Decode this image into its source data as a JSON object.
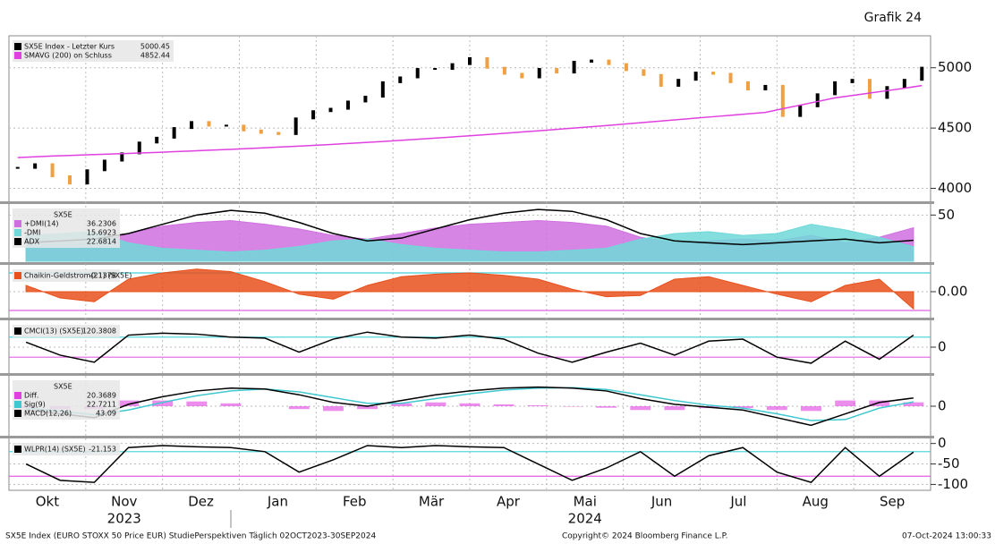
{
  "header": {
    "title": "Grafik 24"
  },
  "x_axis": {
    "months": [
      "Okt",
      "Nov",
      "Dez",
      "Jan",
      "Feb",
      "Mär",
      "Apr",
      "Mai",
      "Jun",
      "Jul",
      "Aug",
      "Sep"
    ],
    "years": [
      "2023",
      "2024"
    ]
  },
  "footer": {
    "left": "SX5E Index (EURO STOXX 50 Price EUR) StudiePerspektiven  Täglich 02OCT2023-30SEP2024",
    "center": "Copyright© 2024 Bloomberg Finance L.P.",
    "right": "07-Oct-2024 13:00:33"
  },
  "chart_data": [
    {
      "type": "line",
      "ylim": [
        3900,
        5250
      ],
      "yticks": [
        4000,
        4500,
        5000
      ],
      "grid": true,
      "series": [
        {
          "name": "SX5E Index - Letzter Kurs",
          "style": "bars",
          "color": "#000000",
          "down_color": "#f0a040",
          "last_label": "5000.45",
          "values": [
            4170,
            4200,
            4100,
            4040,
            4150,
            4230,
            4290,
            4380,
            4420,
            4500,
            4550,
            4520,
            4520,
            4480,
            4460,
            4450,
            4580,
            4640,
            4660,
            4720,
            4760,
            4880,
            4920,
            4990,
            4990,
            5030,
            5080,
            5000,
            4950,
            4920,
            4990,
            4960,
            5050,
            5060,
            5030,
            4980,
            4940,
            4850,
            4900,
            4960,
            4950,
            4880,
            4820,
            4850,
            4600,
            4680,
            4780,
            4880,
            4900,
            4750,
            4840,
            4900,
            5000.45
          ]
        },
        {
          "name": "SMAVG (200)  on Schluss",
          "style": "line",
          "color": "#e040e0",
          "last_label": "4852.44",
          "values": [
            4255,
            4262,
            4268,
            4273,
            4278,
            4283,
            4288,
            4293,
            4298,
            4304,
            4310,
            4316,
            4322,
            4328,
            4335,
            4342,
            4349,
            4356,
            4364,
            4372,
            4380,
            4389,
            4398,
            4407,
            4416,
            4426,
            4436,
            4446,
            4456,
            4467,
            4478,
            4489,
            4500,
            4511,
            4522,
            4534,
            4546,
            4558,
            4570,
            4582,
            4594,
            4606,
            4618,
            4630,
            4660,
            4690,
            4720,
            4750,
            4770,
            4790,
            4810,
            4830,
            4852.44
          ]
        }
      ]
    },
    {
      "type": "line",
      "title": "SX5E",
      "ylim": [
        0,
        60
      ],
      "yticks": [
        50
      ],
      "grid": true,
      "series": [
        {
          "name": "+DMI(14)",
          "style": "area",
          "color": "#d070e0",
          "last_label": "36.2306",
          "values": [
            25,
            22,
            18,
            30,
            38,
            42,
            44,
            40,
            35,
            28,
            24,
            30,
            36,
            40,
            42,
            44,
            42,
            38,
            26,
            20,
            22,
            24,
            22,
            28,
            20,
            26,
            36.2306
          ]
        },
        {
          "name": "-DMI",
          "style": "area",
          "color": "#70d8d8",
          "last_label": "15.6923",
          "values": [
            28,
            30,
            32,
            20,
            14,
            12,
            10,
            12,
            16,
            22,
            24,
            18,
            14,
            12,
            10,
            10,
            12,
            14,
            24,
            30,
            32,
            28,
            30,
            40,
            34,
            26,
            15.6923
          ]
        },
        {
          "name": "ADX",
          "style": "line",
          "color": "#000000",
          "last_label": "22.6814",
          "values": [
            20,
            22,
            24,
            30,
            40,
            50,
            55,
            52,
            42,
            30,
            22,
            25,
            35,
            45,
            52,
            56,
            54,
            45,
            30,
            22,
            20,
            18,
            20,
            22,
            24,
            20,
            22.6814
          ]
        }
      ]
    },
    {
      "type": "line",
      "ylim": [
        -0.2,
        0.2
      ],
      "yticks": [
        {
          "value": 0,
          "label": "0.00"
        }
      ],
      "grid": true,
      "ref_lines": [
        0.15,
        -0.15
      ],
      "series": [
        {
          "name": "Chaikin-Geldstrom(21) (SX5E)",
          "style": "area",
          "color": "#e8501c",
          "last_label": "-0.1378",
          "values": [
            0.05,
            -0.05,
            -0.08,
            0.1,
            0.15,
            0.18,
            0.16,
            0.08,
            -0.02,
            -0.06,
            0.05,
            0.12,
            0.14,
            0.15,
            0.13,
            0.1,
            0.02,
            -0.04,
            -0.03,
            0.1,
            0.12,
            0.05,
            -0.02,
            -0.08,
            0.05,
            0.1,
            -0.1378
          ]
        }
      ]
    },
    {
      "type": "line",
      "ylim": [
        -250,
        250
      ],
      "yticks": [
        0
      ],
      "grid": true,
      "ref_lines": [
        100,
        -100
      ],
      "series": [
        {
          "name": "CMCI(13) (SX5E)",
          "style": "line",
          "color": "#000000",
          "last_label": "120.3808",
          "values": [
            50,
            -80,
            -150,
            120,
            140,
            130,
            100,
            90,
            -50,
            80,
            150,
            100,
            90,
            120,
            80,
            -60,
            -150,
            -50,
            40,
            -80,
            60,
            80,
            -100,
            -160,
            60,
            -120,
            120.3808
          ]
        }
      ]
    },
    {
      "type": "line",
      "title": "SX5E",
      "ylim": [
        -150,
        150
      ],
      "yticks": [
        0
      ],
      "grid": true,
      "series": [
        {
          "name": "Diff.",
          "style": "histogram",
          "color": "#e040e0",
          "last_label": "20.3689",
          "values": [
            -10,
            -15,
            -15,
            30,
            30,
            25,
            15,
            0,
            -15,
            -25,
            -15,
            15,
            20,
            15,
            10,
            5,
            -2,
            -8,
            -20,
            -20,
            -10,
            -10,
            -20,
            -25,
            30,
            30,
            20.3689
          ]
        },
        {
          "name": "Sig(9)",
          "style": "line",
          "color": "#40c8d0",
          "last_label": "22.7211",
          "values": [
            -10,
            -25,
            -45,
            -20,
            20,
            55,
            80,
            90,
            75,
            45,
            15,
            15,
            40,
            65,
            85,
            95,
            97,
            88,
            60,
            30,
            5,
            -10,
            -40,
            -75,
            -70,
            -10,
            22.7211
          ]
        },
        {
          "name": "MACD(12,26)",
          "style": "line",
          "color": "#000000",
          "last_label": "43.09",
          "values": [
            -20,
            -40,
            -60,
            10,
            50,
            80,
            95,
            90,
            60,
            20,
            0,
            30,
            60,
            80,
            95,
            100,
            95,
            80,
            40,
            10,
            -5,
            -20,
            -60,
            -100,
            -40,
            20,
            43.09
          ]
        }
      ]
    },
    {
      "type": "line",
      "ylim": [
        -110,
        8
      ],
      "yticks": [
        0,
        -50,
        -100
      ],
      "grid": true,
      "ref_lines": [
        -20,
        -80
      ],
      "series": [
        {
          "name": "WLPR(14) (SX5E)",
          "style": "line",
          "color": "#000000",
          "last_label": "-21.153",
          "values": [
            -50,
            -90,
            -95,
            -10,
            -5,
            -8,
            -10,
            -20,
            -70,
            -40,
            -5,
            -10,
            -5,
            -8,
            -10,
            -50,
            -90,
            -60,
            -20,
            -80,
            -30,
            -10,
            -70,
            -95,
            -10,
            -80,
            -21.153
          ]
        }
      ]
    }
  ]
}
